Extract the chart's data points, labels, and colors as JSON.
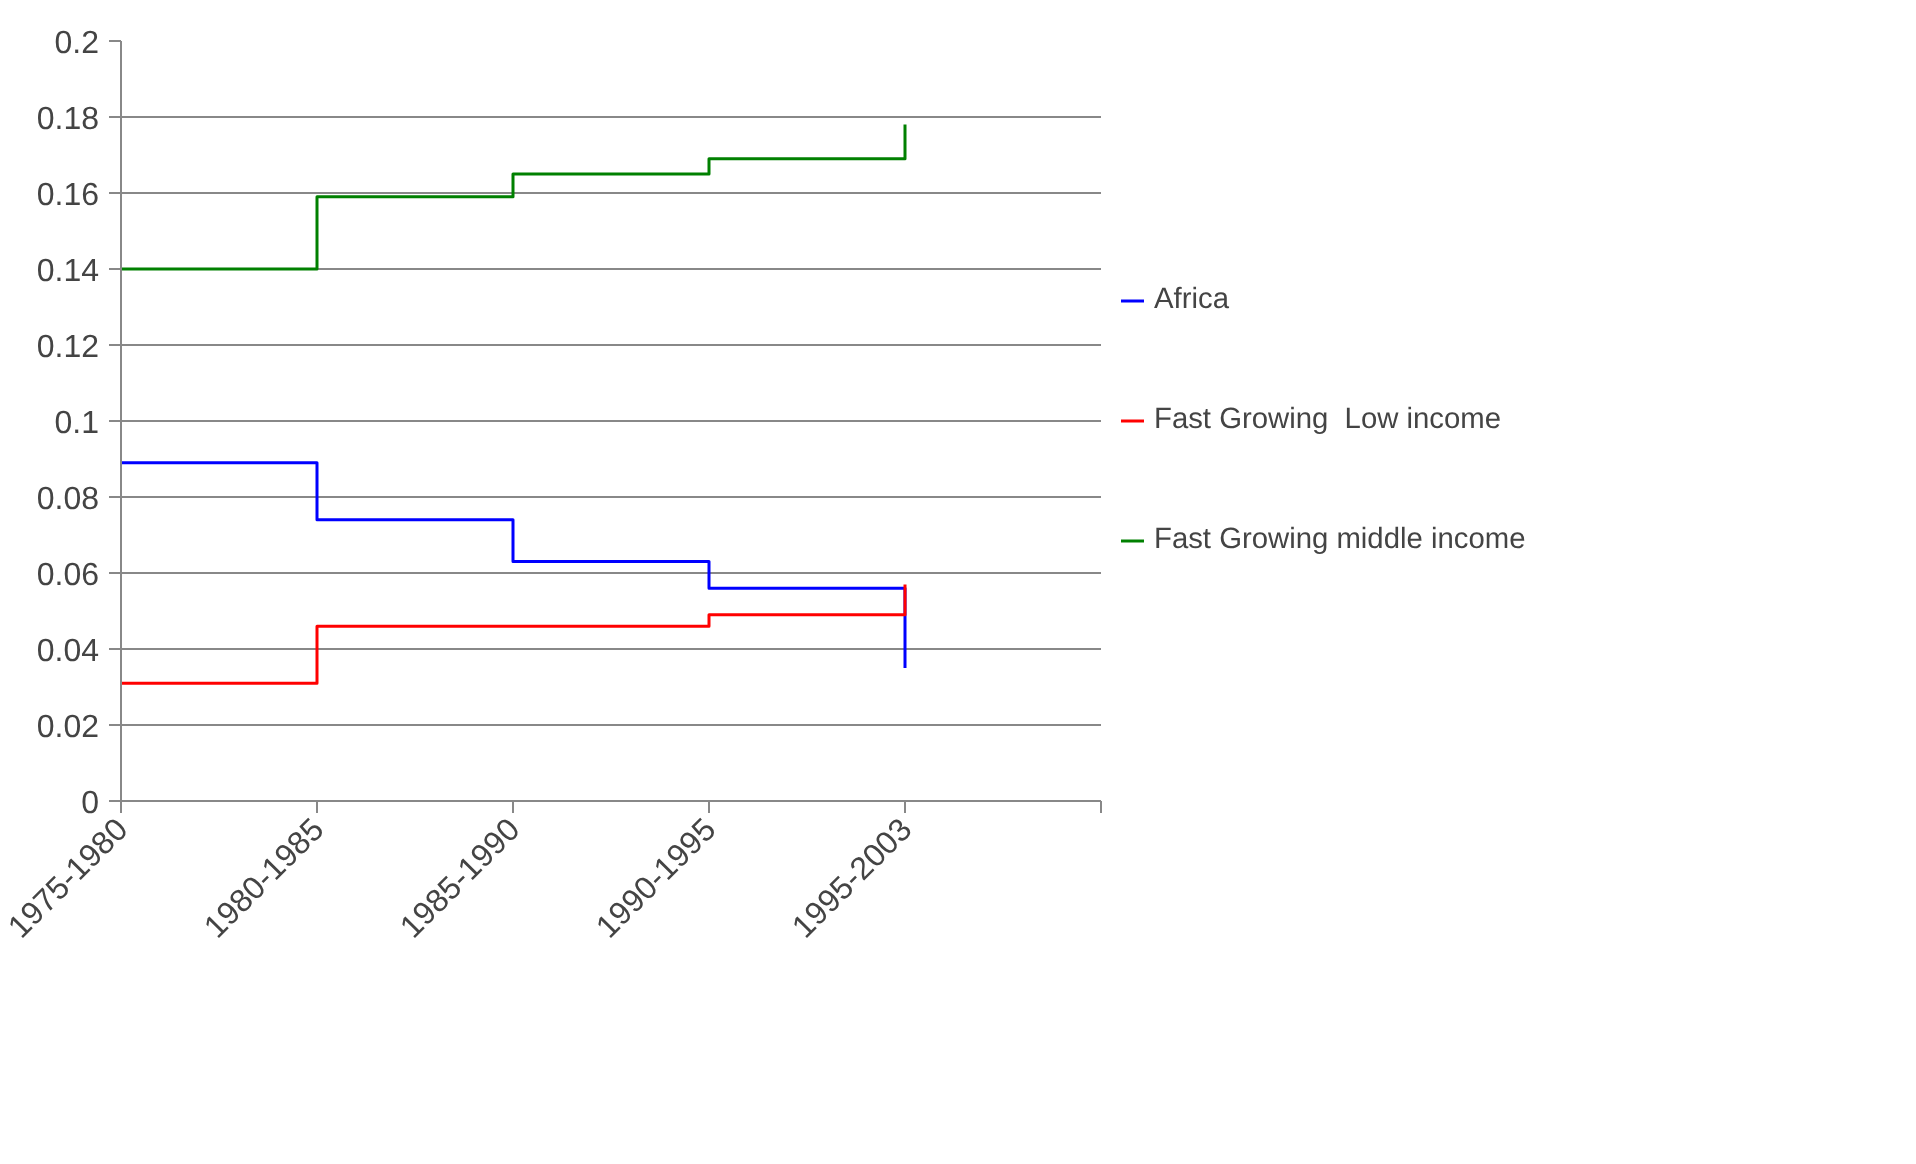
{
  "chart_data": {
    "type": "step",
    "categories": [
      "1975-1980",
      "1980-1985",
      "1985-1990",
      "1990-1995",
      "1995-2003"
    ],
    "series": [
      {
        "name": "Africa",
        "color": "#0000ff",
        "values": [
          0.089,
          0.074,
          0.063,
          0.056,
          0.035
        ]
      },
      {
        "name": "Fast Growing  Low income",
        "color": "#ff0000",
        "values": [
          0.031,
          0.046,
          0.046,
          0.049,
          0.057
        ]
      },
      {
        "name": "Fast Growing middle income",
        "color": "#008000",
        "values": [
          0.14,
          0.159,
          0.165,
          0.169,
          0.178
        ]
      }
    ],
    "ylim": [
      0,
      0.2
    ],
    "yticks": [
      0,
      0.02,
      0.04,
      0.06,
      0.08,
      0.1,
      0.12,
      0.14,
      0.16,
      0.18,
      0.2
    ],
    "grid": "y",
    "legend": "right",
    "line_style": "solid",
    "marker": "none"
  }
}
